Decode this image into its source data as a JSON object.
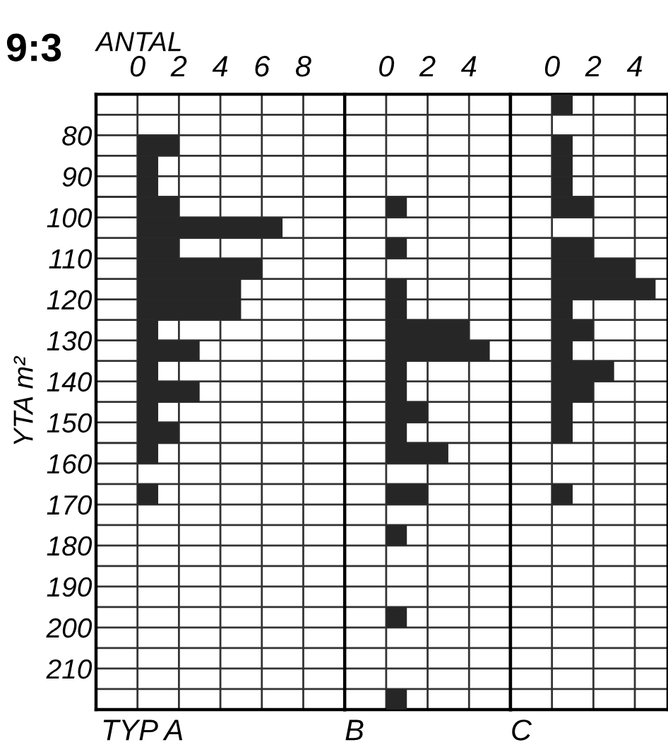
{
  "chart_data": [
    {
      "type": "histogram",
      "orientation": "horizontal",
      "title": "9:3",
      "xlabel": "ANTAL",
      "ylabel": "YTA m²",
      "annotations": [
        "TYP A"
      ],
      "color": "#262626",
      "grid": true,
      "bins": [
        70,
        75,
        80,
        85,
        90,
        95,
        100,
        105,
        110,
        115,
        120,
        125,
        130,
        135,
        140,
        145,
        150,
        155,
        160,
        165,
        170,
        175,
        180,
        185,
        190,
        195,
        200,
        205,
        210,
        215,
        220
      ],
      "values": [
        0,
        0,
        2,
        1,
        1,
        2,
        7,
        2,
        6,
        5,
        5,
        1,
        3,
        1,
        3,
        1,
        2,
        1,
        0,
        1,
        0,
        0,
        0,
        0,
        0,
        0,
        0,
        0,
        0,
        0
      ],
      "xlim": [
        -2,
        10
      ],
      "xticks": [
        0,
        2,
        4,
        6,
        8
      ],
      "ylim": [
        220,
        70
      ],
      "yticks": [
        {
          "value": 75,
          "label": null
        },
        80,
        {
          "value": 85,
          "label": null
        },
        90,
        {
          "value": 95,
          "label": null
        },
        100,
        {
          "value": 105,
          "label": null
        },
        110,
        {
          "value": 115,
          "label": null
        },
        120,
        {
          "value": 125,
          "label": null
        },
        130,
        {
          "value": 135,
          "label": null
        },
        140,
        {
          "value": 145,
          "label": null
        },
        150,
        {
          "value": 155,
          "label": null
        },
        160,
        {
          "value": 165,
          "label": null
        },
        170,
        {
          "value": 175,
          "label": null
        },
        180,
        {
          "value": 185,
          "label": null
        },
        190,
        {
          "value": 195,
          "label": null
        },
        200,
        {
          "value": 205,
          "label": null
        },
        210,
        {
          "value": 215,
          "label": null
        }
      ]
    },
    {
      "type": "histogram",
      "orientation": "horizontal",
      "annotations": [
        "B"
      ],
      "color": "#262626",
      "grid": true,
      "tick_labels": "x",
      "bins": [
        70,
        75,
        80,
        85,
        90,
        95,
        100,
        105,
        110,
        115,
        120,
        125,
        130,
        135,
        140,
        145,
        150,
        155,
        160,
        165,
        170,
        175,
        180,
        185,
        190,
        195,
        200,
        205,
        210,
        215,
        220
      ],
      "values": [
        0,
        0,
        0,
        0,
        0,
        1,
        0,
        1,
        0,
        1,
        1,
        4,
        5,
        1,
        1,
        2,
        1,
        3,
        0,
        2,
        0,
        1,
        0,
        0,
        0,
        1,
        0,
        0,
        0,
        1
      ],
      "xlim": [
        -2,
        6
      ],
      "xticks": [
        0,
        2,
        4
      ],
      "ylim": [
        220,
        70
      ],
      "yticks": [
        75,
        80,
        85,
        90,
        95,
        100,
        105,
        110,
        115,
        120,
        125,
        130,
        135,
        140,
        145,
        150,
        155,
        160,
        165,
        170,
        175,
        180,
        185,
        190,
        195,
        200,
        205,
        210,
        215
      ]
    },
    {
      "type": "histogram",
      "orientation": "horizontal",
      "annotations": [
        "C"
      ],
      "color": "#262626",
      "grid": true,
      "tick_labels": "x",
      "bins": [
        70,
        75,
        80,
        85,
        90,
        95,
        100,
        105,
        110,
        115,
        120,
        125,
        130,
        135,
        140,
        145,
        150,
        155,
        160,
        165,
        170,
        175,
        180,
        185,
        190,
        195,
        200,
        205,
        210,
        215,
        220
      ],
      "values": [
        1,
        0,
        1,
        1,
        1,
        2,
        0,
        2,
        4,
        5,
        1,
        2,
        1,
        3,
        2,
        1,
        1,
        0,
        0,
        1,
        0,
        0,
        0,
        0,
        0,
        0,
        0,
        0,
        0,
        0
      ],
      "xlim": [
        -2,
        5.6
      ],
      "xticks": [
        0,
        2,
        4
      ],
      "ylim": [
        220,
        70
      ],
      "yticks": [
        75,
        80,
        85,
        90,
        95,
        100,
        105,
        110,
        115,
        120,
        125,
        130,
        135,
        140,
        145,
        150,
        155,
        160,
        165,
        170,
        175,
        180,
        185,
        190,
        195,
        200,
        205,
        210,
        215
      ]
    }
  ]
}
